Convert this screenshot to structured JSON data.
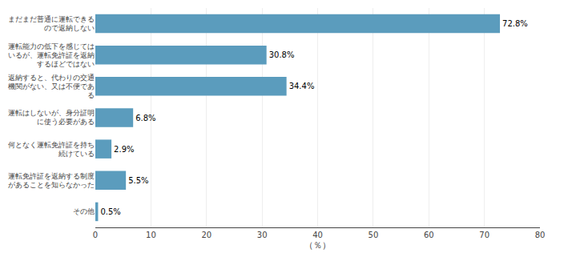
{
  "chart_data": {
    "type": "bar",
    "orientation": "horizontal",
    "categories": [
      "まだまだ普通に運転できる\nので返納しない",
      "運転能力の低下を感じては\nいるが、運転免許証を返納\nするほどではない",
      "返納すると、代わりの交通\n機関がない、又は不便であ\nる",
      "運転はしないが、身分証明\nに使う必要がある",
      "何となく運転免許証を持ち\n続けている",
      "運転免許証を返納する制度\nがあることを知らなかった",
      "その他"
    ],
    "values": [
      72.8,
      30.8,
      34.4,
      6.8,
      2.9,
      5.5,
      0.5
    ],
    "value_labels": [
      "72.8%",
      "30.8%",
      "34.4%",
      "6.8%",
      "2.9%",
      "5.5%",
      "0.5%"
    ],
    "data_labels": true,
    "color": "#5b9cbd",
    "xlabel": "（％）",
    "xlim": [
      0,
      80
    ],
    "xticks": [
      0,
      10,
      20,
      30,
      40,
      50,
      60,
      70,
      80
    ],
    "grid": true
  }
}
